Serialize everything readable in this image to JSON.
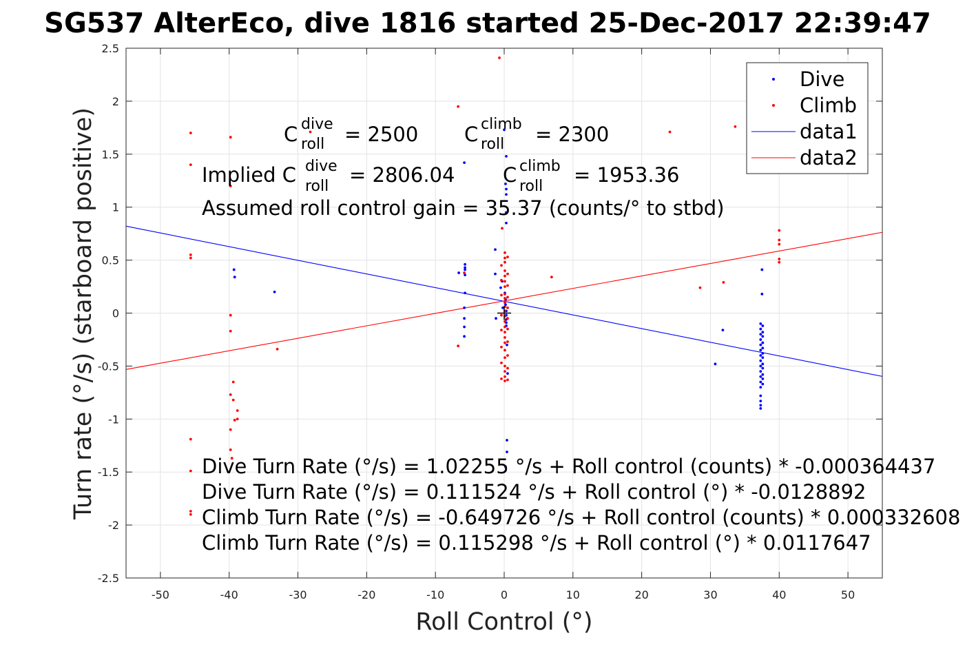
{
  "chart_data": {
    "type": "scatter",
    "title": "SG537 AlterEco, dive 1816 started 25-Dec-2017 22:39:47",
    "xlabel": "Roll Control (°)",
    "ylabel": "Turn rate (°/s) (starboard positive)",
    "xlim": [
      -55,
      55
    ],
    "ylim": [
      -2.5,
      2.5
    ],
    "xticks": [
      -50,
      -40,
      -30,
      -20,
      -10,
      0,
      10,
      20,
      30,
      40,
      50
    ],
    "yticks": [
      -2.5,
      -2,
      -1.5,
      -1,
      -0.5,
      0,
      0.5,
      1,
      1.5,
      2,
      2.5
    ],
    "xtick_labels": [
      "-50",
      "-40",
      "-30",
      "-20",
      "-10",
      "0",
      "10",
      "20",
      "30",
      "40",
      "50"
    ],
    "ytick_labels": [
      "-2.5",
      "-2",
      "-1.5",
      "-1",
      "-0.5",
      "0",
      "0.5",
      "1",
      "1.5",
      "2",
      "2.5"
    ],
    "grid": true,
    "legend_position": "top-right",
    "series": [
      {
        "name": "Dive",
        "kind": "points",
        "color": "#0000ff",
        "points": [
          [
            -39.3,
            0.41
          ],
          [
            -39.2,
            0.34
          ],
          [
            -33.4,
            0.2
          ],
          [
            -6.6,
            0.38
          ],
          [
            -5.7,
            0.46
          ],
          [
            -5.7,
            0.43
          ],
          [
            -5.7,
            0.41
          ],
          [
            -5.7,
            0.36
          ],
          [
            -5.7,
            0.19
          ],
          [
            -5.8,
            0.05
          ],
          [
            -5.8,
            -0.05
          ],
          [
            -5.8,
            -0.13
          ],
          [
            -5.8,
            -0.22
          ],
          [
            -5.8,
            1.42
          ],
          [
            -1.3,
            0.6
          ],
          [
            -1.3,
            0.37
          ],
          [
            -1.2,
            -0.05
          ],
          [
            -0.5,
            0.24
          ],
          [
            -0.3,
            0.3
          ],
          [
            -0.2,
            0.05
          ],
          [
            0.0,
            1.73
          ],
          [
            0.2,
            1.22
          ],
          [
            0.3,
            1.17
          ],
          [
            0.3,
            1.12
          ],
          [
            0.3,
            0.95
          ],
          [
            0.3,
            0.85
          ],
          [
            0.3,
            1.48
          ],
          [
            0.1,
            0.19
          ],
          [
            0.2,
            0.13
          ],
          [
            0.2,
            0.08
          ],
          [
            0.3,
            0.02
          ],
          [
            0.3,
            -0.02
          ],
          [
            0.3,
            -0.06
          ],
          [
            0.3,
            -0.09
          ],
          [
            0.3,
            -0.12
          ],
          [
            0.4,
            -0.3
          ],
          [
            0.5,
            -0.57
          ],
          [
            0.4,
            -1.2
          ],
          [
            0.4,
            -1.31
          ],
          [
            0.2,
            -1.45
          ],
          [
            30.7,
            -0.48
          ],
          [
            31.8,
            -0.16
          ],
          [
            37.3,
            -0.1
          ],
          [
            37.3,
            -0.15
          ],
          [
            37.3,
            -0.2
          ],
          [
            37.3,
            -0.25
          ],
          [
            37.3,
            -0.3
          ],
          [
            37.3,
            -0.35
          ],
          [
            37.3,
            -0.4
          ],
          [
            37.3,
            -0.45
          ],
          [
            37.3,
            -0.5
          ],
          [
            37.3,
            -0.55
          ],
          [
            37.3,
            -0.6
          ],
          [
            37.3,
            -0.65
          ],
          [
            37.3,
            -0.7
          ],
          [
            37.3,
            -0.78
          ],
          [
            37.3,
            -0.83
          ],
          [
            37.3,
            -0.87
          ],
          [
            37.3,
            -0.9
          ],
          [
            37.6,
            -0.12
          ],
          [
            37.6,
            -0.18
          ],
          [
            37.6,
            -0.22
          ],
          [
            37.6,
            -0.28
          ],
          [
            37.6,
            -0.33
          ],
          [
            37.6,
            -0.38
          ],
          [
            37.6,
            -0.42
          ],
          [
            37.6,
            -0.48
          ],
          [
            37.6,
            -0.52
          ],
          [
            37.6,
            -0.58
          ],
          [
            37.6,
            -0.62
          ],
          [
            37.6,
            -0.67
          ],
          [
            37.5,
            0.41
          ],
          [
            37.5,
            0.18
          ]
        ]
      },
      {
        "name": "Climb",
        "kind": "points",
        "color": "#ff0000",
        "points": [
          [
            -45.6,
            1.7
          ],
          [
            -45.6,
            1.4
          ],
          [
            -45.6,
            0.55
          ],
          [
            -45.6,
            0.52
          ],
          [
            -45.6,
            -1.19
          ],
          [
            -45.6,
            -1.49
          ],
          [
            -45.6,
            -1.87
          ],
          [
            -45.6,
            -1.9
          ],
          [
            -39.8,
            1.66
          ],
          [
            -39.8,
            1.2
          ],
          [
            -39.8,
            -0.02
          ],
          [
            -39.8,
            -0.17
          ],
          [
            -39.8,
            -0.77
          ],
          [
            -39.8,
            -1.1
          ],
          [
            -39.8,
            -1.29
          ],
          [
            -39.4,
            -0.65
          ],
          [
            -39.4,
            -0.82
          ],
          [
            -39.2,
            -1.01
          ],
          [
            -38.8,
            -0.92
          ],
          [
            -38.8,
            -1.0
          ],
          [
            -39.6,
            -1.37
          ],
          [
            -33.0,
            -0.34
          ],
          [
            -28.2,
            1.71
          ],
          [
            -6.7,
            1.95
          ],
          [
            -6.7,
            -0.31
          ],
          [
            -5.8,
            0.38
          ],
          [
            -0.7,
            2.41
          ],
          [
            -0.3,
            0.8
          ],
          [
            0.1,
            0.57
          ],
          [
            0.1,
            0.52
          ],
          [
            0.1,
            0.48
          ],
          [
            0.1,
            0.4
          ],
          [
            0.1,
            0.35
          ],
          [
            0.1,
            0.3
          ],
          [
            0.1,
            0.25
          ],
          [
            0.1,
            0.18
          ],
          [
            0.1,
            0.14
          ],
          [
            0.1,
            0.1
          ],
          [
            0.1,
            0.06
          ],
          [
            0.1,
            0.02
          ],
          [
            0.1,
            -0.03
          ],
          [
            0.1,
            -0.08
          ],
          [
            0.1,
            -0.13
          ],
          [
            0.1,
            -0.18
          ],
          [
            0.1,
            -0.23
          ],
          [
            0.1,
            -0.28
          ],
          [
            0.1,
            -0.35
          ],
          [
            0.1,
            -0.42
          ],
          [
            0.1,
            -0.5
          ],
          [
            0.1,
            -0.55
          ],
          [
            0.1,
            -0.6
          ],
          [
            0.1,
            -0.64
          ],
          [
            -0.4,
            0.45
          ],
          [
            -0.4,
            0.31
          ],
          [
            -0.4,
            0.17
          ],
          [
            -0.4,
            -0.02
          ],
          [
            -0.4,
            -0.16
          ],
          [
            -0.4,
            -0.32
          ],
          [
            -0.4,
            -0.47
          ],
          [
            -0.4,
            -0.62
          ],
          [
            0.5,
            0.53
          ],
          [
            0.5,
            0.37
          ],
          [
            0.5,
            0.26
          ],
          [
            0.5,
            0.15
          ],
          [
            0.5,
            0.05
          ],
          [
            0.5,
            -0.05
          ],
          [
            0.5,
            -0.15
          ],
          [
            0.5,
            -0.27
          ],
          [
            0.5,
            -0.4
          ],
          [
            0.5,
            -0.52
          ],
          [
            0.5,
            -0.63
          ],
          [
            6.9,
            0.34
          ],
          [
            24.1,
            1.71
          ],
          [
            28.5,
            0.24
          ],
          [
            31.9,
            0.29
          ],
          [
            33.6,
            1.76
          ],
          [
            40.0,
            0.78
          ],
          [
            40.0,
            0.69
          ],
          [
            40.0,
            0.65
          ],
          [
            40.0,
            0.51
          ],
          [
            40.0,
            0.48
          ]
        ]
      },
      {
        "name": "data1",
        "kind": "line",
        "color": "#0000ff",
        "x": [
          -55,
          55
        ],
        "y": [
          0.8204,
          -0.5974
        ]
      },
      {
        "name": "data2",
        "kind": "line",
        "color": "#ff0000",
        "x": [
          -55,
          55
        ],
        "y": [
          -0.5318,
          0.7624
        ]
      }
    ],
    "annotations": {
      "c_dive_base": "C",
      "c_dive_sup": "dive",
      "c_dive_sub": "roll",
      "c_dive_value": "= 2500",
      "c_climb_base": "C",
      "c_climb_sup": "climb",
      "c_climb_sub": "roll",
      "c_climb_value": "= 2300",
      "implied_prefix": "Implied C",
      "implied_dive_sup": "dive",
      "implied_dive_sub": "roll",
      "implied_dive_value": "= 2806.04",
      "implied_climb_base": "C",
      "implied_climb_sup": "climb",
      "implied_climb_sub": "roll",
      "implied_climb_value": "= 1953.36",
      "gain": "Assumed roll control gain = 35.37 (counts/° to stbd)",
      "fit_lines": [
        "Dive Turn Rate (°/s) = 1.02255 °/s + Roll control (counts) * -0.000364437",
        "Dive Turn Rate (°/s) = 0.111524 °/s + Roll control (°) * -0.0128892",
        "Climb Turn Rate (°/s) = -0.649726 °/s + Roll control (counts) * 0.000332608",
        "Climb Turn Rate (°/s) = 0.115298 °/s + Roll control (°) * 0.0117647"
      ]
    },
    "marker": {
      "x": 0,
      "y": 0,
      "symbol": "+"
    }
  }
}
